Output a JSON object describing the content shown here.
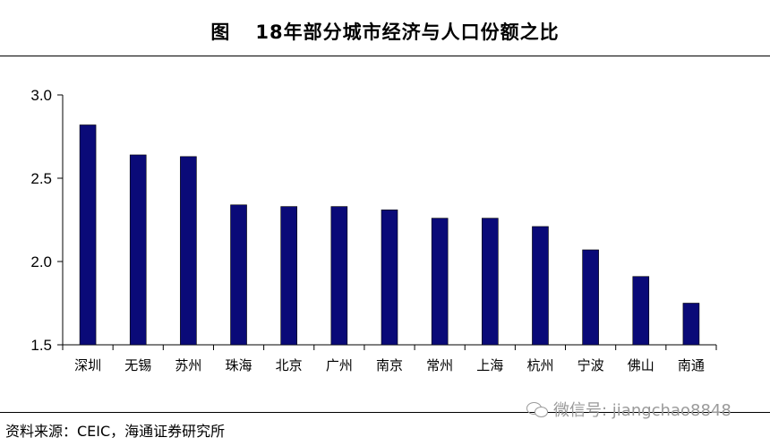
{
  "header": {
    "figure_label": "图",
    "title": "18年部分城市经济与人口份额之比"
  },
  "footer": {
    "source": "资料来源：CEIC，海通证券研究所",
    "watermark": "微信号: jiangchao8848",
    "watermark_icon": "wechat-icon"
  },
  "chart_data": {
    "type": "bar",
    "title": "18年部分城市经济与人口份额之比",
    "xlabel": "",
    "ylabel": "",
    "categories": [
      "深圳",
      "无锡",
      "苏州",
      "珠海",
      "北京",
      "广州",
      "南京",
      "常州",
      "上海",
      "杭州",
      "宁波",
      "佛山",
      "南通"
    ],
    "values": [
      2.82,
      2.64,
      2.63,
      2.34,
      2.33,
      2.33,
      2.31,
      2.26,
      2.26,
      2.21,
      2.07,
      1.91,
      1.75
    ],
    "ylim": [
      1.5,
      3.0
    ],
    "yticks": [
      "1.5",
      "2.0",
      "2.5",
      "3.0"
    ],
    "grid": false,
    "legend": "none",
    "bar_color": "#0a0a78"
  }
}
